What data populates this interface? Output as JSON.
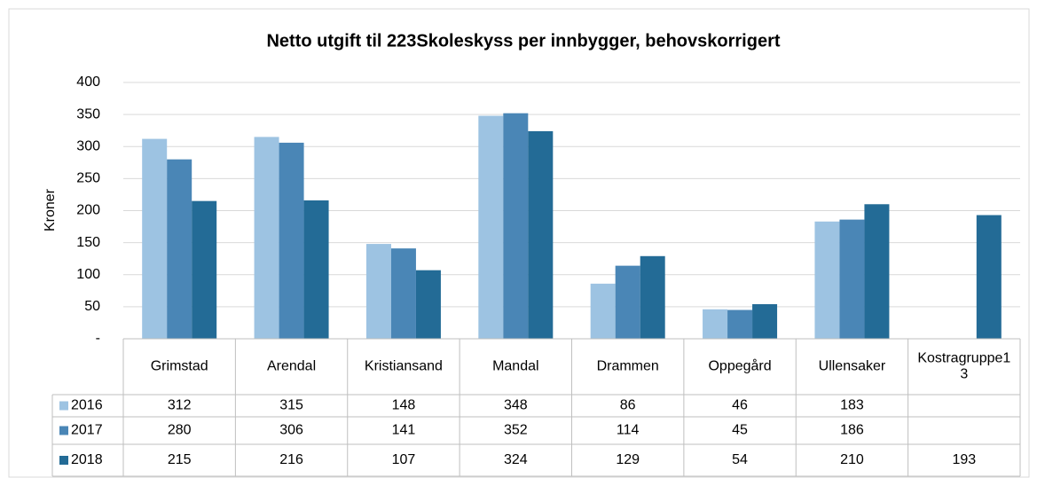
{
  "chart_data": {
    "type": "bar",
    "title": "Netto utgift til 223Skoleskyss per innbygger, behovskorrigert",
    "y_label": "Kroner",
    "categories": [
      "Grimstad",
      "Arendal",
      "Kristiansand",
      "Mandal",
      "Drammen",
      "Oppegård",
      "Ullensaker",
      "Kostragruppe13"
    ],
    "series": [
      {
        "name": "2016",
        "color": "#9dc3e2",
        "values": [
          312,
          315,
          148,
          348,
          86,
          46,
          183,
          null
        ]
      },
      {
        "name": "2017",
        "color": "#4a86b6",
        "values": [
          280,
          306,
          141,
          352,
          114,
          45,
          186,
          null
        ]
      },
      {
        "name": "2018",
        "color": "#236b96",
        "values": [
          215,
          216,
          107,
          324,
          129,
          54,
          210,
          193
        ]
      }
    ],
    "ylim": [
      0,
      400
    ],
    "yticks": [
      {
        "value": 0,
        "label": "-"
      },
      50,
      100,
      150,
      200,
      250,
      300,
      350,
      400
    ],
    "grid": true,
    "data_table": true
  }
}
